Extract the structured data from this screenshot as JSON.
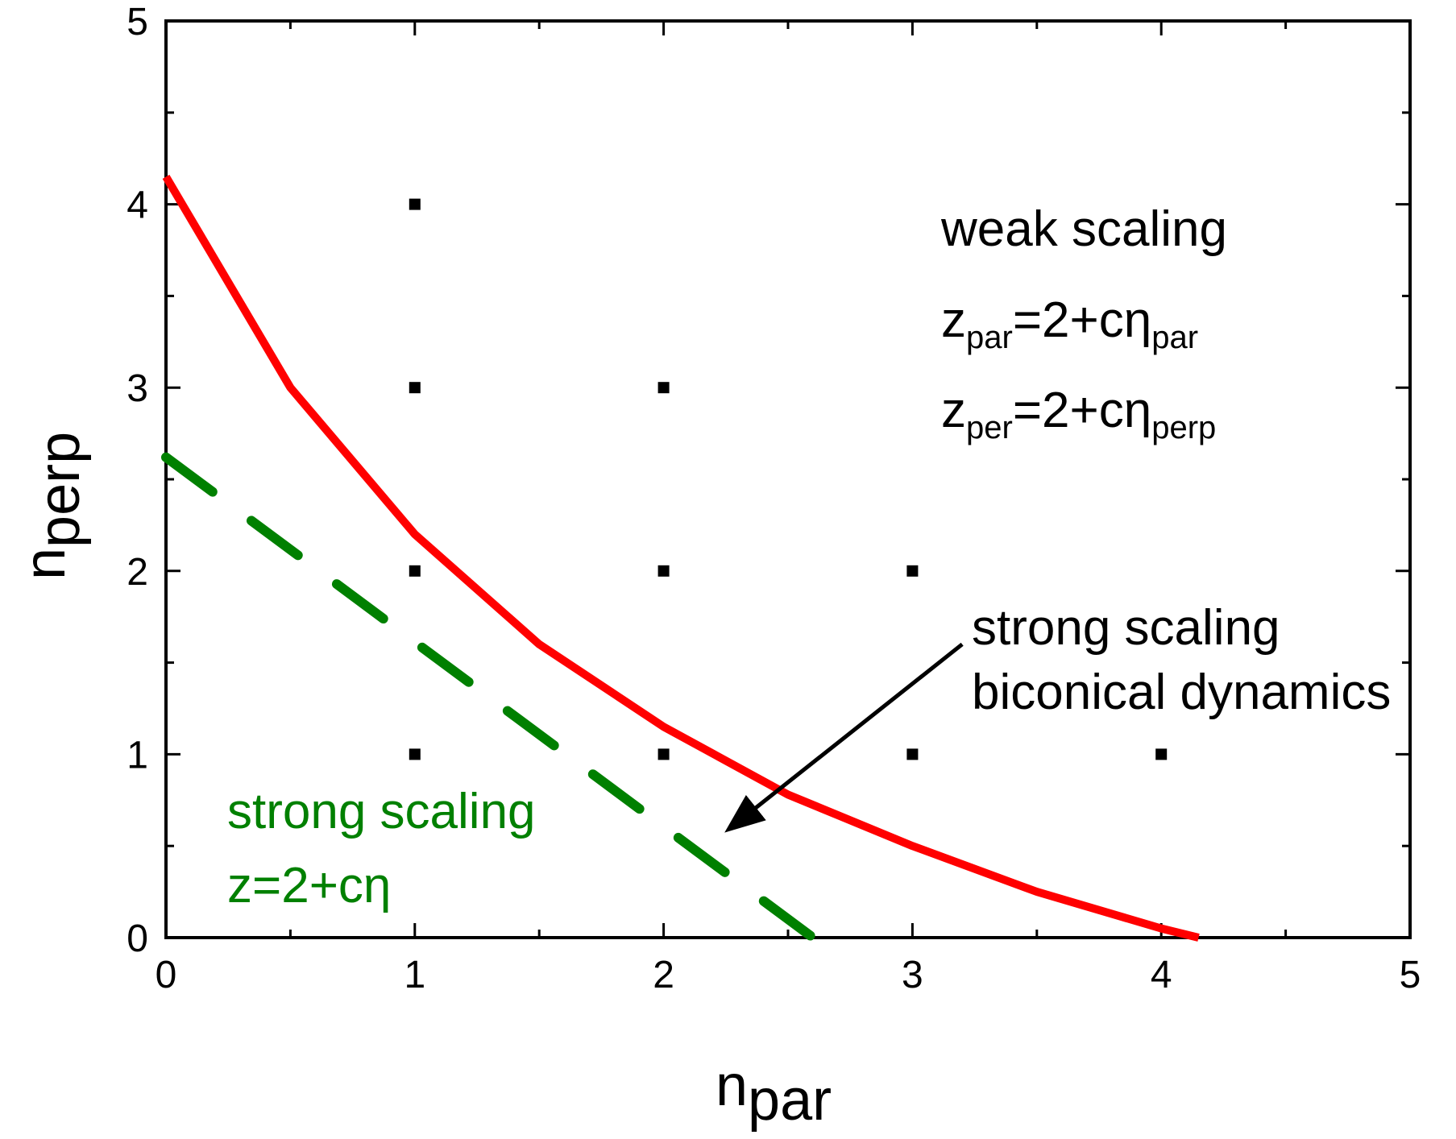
{
  "chart_data": {
    "type": "line",
    "xlabel": {
      "main": "n",
      "sub": "par"
    },
    "ylabel": {
      "main": "n",
      "sub": "perp"
    },
    "xlim": [
      0,
      5
    ],
    "ylim": [
      0,
      5
    ],
    "x_ticks": [
      "0",
      "1",
      "2",
      "3",
      "4",
      "5"
    ],
    "y_ticks": [
      "0",
      "1",
      "2",
      "3",
      "4",
      "5"
    ],
    "grid": false,
    "series": [
      {
        "style": "solid",
        "color": "#ff0000",
        "x": [
          0,
          0.5,
          1.0,
          1.5,
          2.0,
          2.5,
          3.0,
          3.5,
          4.0,
          4.15
        ],
        "y": [
          4.15,
          3.0,
          2.2,
          1.6,
          1.15,
          0.78,
          0.5,
          0.25,
          0.05,
          0
        ]
      },
      {
        "style": "dashed",
        "color": "#008000",
        "x": [
          0,
          2.6
        ],
        "y": [
          2.62,
          0
        ]
      }
    ],
    "points": {
      "color": "#000000",
      "x": [
        1,
        1,
        1,
        1,
        2,
        2,
        2,
        3,
        3,
        4
      ],
      "y": [
        4,
        3,
        2,
        1,
        3,
        2,
        1,
        2,
        1,
        1
      ]
    },
    "annotations": {
      "weak": {
        "line1": "weak scaling",
        "z_par": {
          "z": "z",
          "zsub": "par",
          "eq": "=2+cη",
          "esub": "par"
        },
        "z_per": {
          "z": "z",
          "zsub": "per",
          "eq": "=2+cη",
          "esub": "perp"
        }
      },
      "strong_biconical": {
        "line1": "strong scaling",
        "line2": "biconical dynamics",
        "arrow_from": [
          3.2,
          1.6
        ],
        "arrow_to": [
          2.27,
          0.6
        ]
      },
      "strong_green": {
        "line1": "strong scaling",
        "line2": "z=2+cη",
        "color": "#008000"
      }
    }
  }
}
